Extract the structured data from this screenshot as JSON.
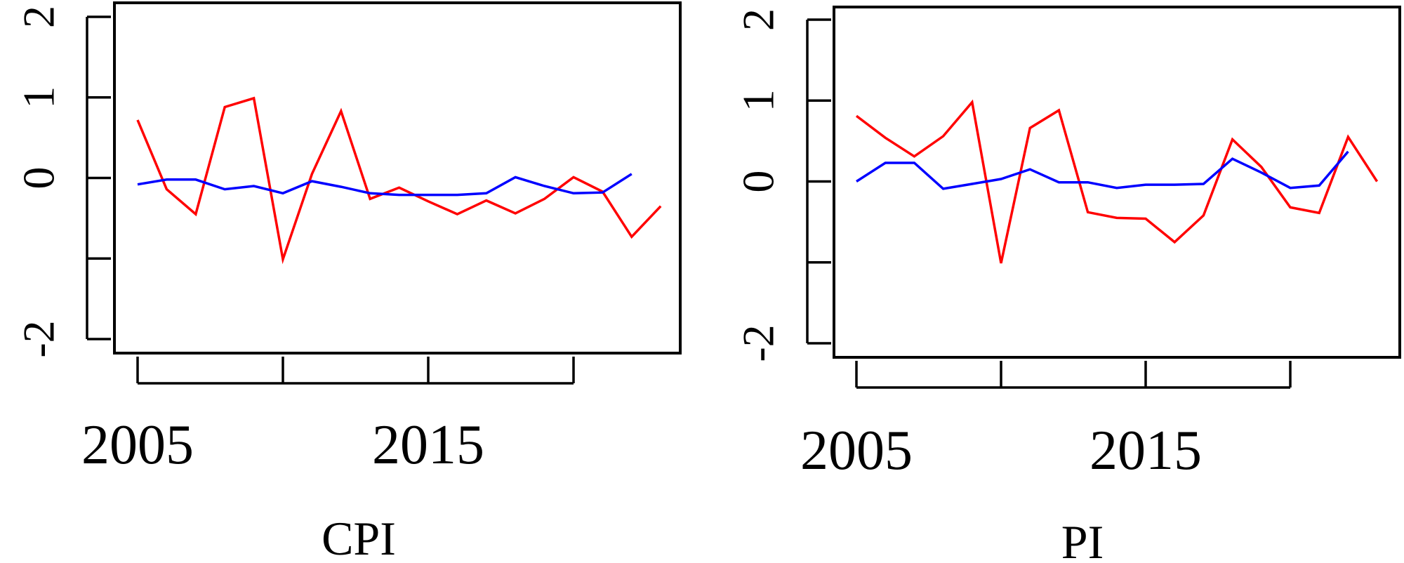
{
  "chart_data": [
    {
      "type": "line",
      "title": "CPI",
      "xlabel": "CPI",
      "ylabel": "",
      "xlim": [
        2005,
        2023
      ],
      "ylim": [
        -2,
        2
      ],
      "x_ticks": [
        2005,
        2010,
        2015,
        2020
      ],
      "x_tick_labels": [
        "2005",
        "",
        "2015",
        ""
      ],
      "y_ticks": [
        -2,
        -1,
        0,
        1,
        2
      ],
      "y_tick_labels": [
        "-2",
        "",
        "0",
        "1",
        "2"
      ],
      "grid": false,
      "legend": "none",
      "series": [
        {
          "color": "#ff0000",
          "x": [
            2005,
            2006,
            2007,
            2008,
            2009,
            2010,
            2011,
            2012,
            2013,
            2014,
            2015,
            2016,
            2017,
            2018,
            2019,
            2020,
            2021,
            2022,
            2023
          ],
          "values": [
            0.72,
            -0.14,
            -0.45,
            0.88,
            0.99,
            -1.01,
            0.05,
            0.83,
            -0.26,
            -0.12,
            -0.29,
            -0.45,
            -0.28,
            -0.44,
            -0.26,
            0.01,
            -0.17,
            -0.73,
            -0.35
          ]
        },
        {
          "color": "#0000ff",
          "x": [
            2005,
            2006,
            2007,
            2008,
            2009,
            2010,
            2011,
            2012,
            2013,
            2014,
            2015,
            2016,
            2017,
            2018,
            2019,
            2020,
            2021,
            2022
          ],
          "values": [
            -0.08,
            -0.02,
            -0.02,
            -0.14,
            -0.1,
            -0.19,
            -0.04,
            -0.11,
            -0.19,
            -0.21,
            -0.21,
            -0.21,
            -0.19,
            0.01,
            -0.1,
            -0.19,
            -0.18,
            0.05
          ]
        }
      ]
    },
    {
      "type": "line",
      "title": "PI",
      "xlabel": "PI",
      "ylabel": "",
      "xlim": [
        2005,
        2023
      ],
      "ylim": [
        -2,
        2
      ],
      "x_ticks": [
        2005,
        2010,
        2015,
        2020
      ],
      "x_tick_labels": [
        "2005",
        "",
        "2015",
        ""
      ],
      "y_ticks": [
        -2,
        -1,
        0,
        1,
        2
      ],
      "y_tick_labels": [
        "-2",
        "",
        "0",
        "1",
        "2"
      ],
      "grid": false,
      "legend": "none",
      "series": [
        {
          "color": "#ff0000",
          "x": [
            2005,
            2006,
            2007,
            2008,
            2009,
            2010,
            2011,
            2012,
            2013,
            2014,
            2015,
            2016,
            2017,
            2018,
            2019,
            2020,
            2021,
            2022,
            2023
          ],
          "values": [
            0.81,
            0.54,
            0.31,
            0.56,
            0.98,
            -1.01,
            0.66,
            0.88,
            -0.38,
            -0.45,
            -0.46,
            -0.75,
            -0.42,
            0.52,
            0.18,
            -0.32,
            -0.39,
            0.55,
            0.0
          ]
        },
        {
          "color": "#0000ff",
          "x": [
            2005,
            2006,
            2007,
            2008,
            2009,
            2010,
            2011,
            2012,
            2013,
            2014,
            2015,
            2016,
            2017,
            2018,
            2019,
            2020,
            2021,
            2022
          ],
          "values": [
            0.0,
            0.23,
            0.23,
            -0.09,
            -0.03,
            0.03,
            0.15,
            -0.01,
            -0.01,
            -0.08,
            -0.04,
            -0.04,
            -0.03,
            0.28,
            0.11,
            -0.08,
            -0.05,
            0.37
          ]
        }
      ]
    }
  ]
}
